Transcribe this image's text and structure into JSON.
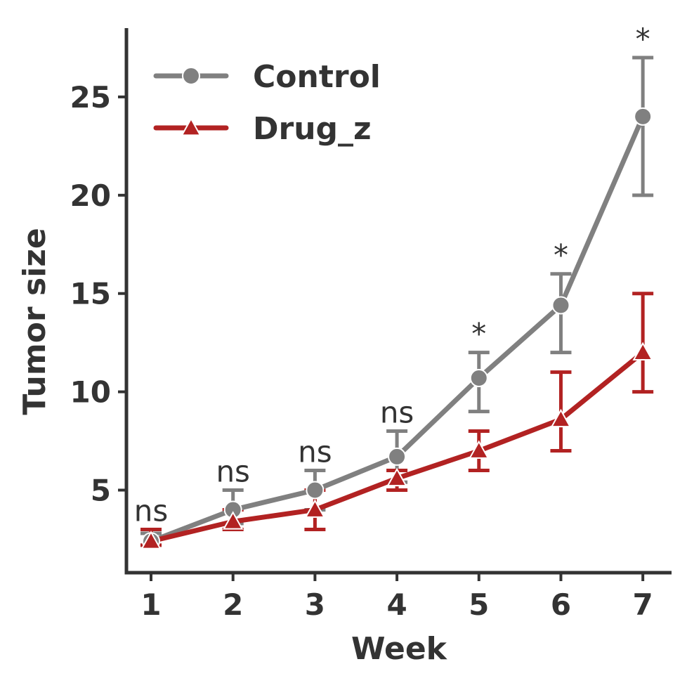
{
  "chart_data": {
    "type": "line",
    "title": "",
    "xlabel": "Week",
    "ylabel": "Tumor size",
    "x": [
      1,
      2,
      3,
      4,
      5,
      6,
      7
    ],
    "xlim": [
      0.7,
      7.35
    ],
    "ylim": [
      0.8,
      28.5
    ],
    "yticks": [
      5,
      10,
      15,
      20,
      25
    ],
    "grid": false,
    "legend_position": "top-left",
    "series": [
      {
        "name": "Control",
        "color": "#808080",
        "marker": "circle",
        "values": [
          2.4,
          4.0,
          5.0,
          6.7,
          10.7,
          14.4,
          24.0
        ],
        "err_low": [
          2.2,
          3.3,
          4.0,
          5.4,
          9.0,
          12.0,
          20.0
        ],
        "err_high": [
          2.8,
          5.0,
          6.0,
          8.0,
          12.0,
          16.0,
          27.0
        ]
      },
      {
        "name": "Drug_z",
        "color": "#b22222",
        "marker": "triangle",
        "values": [
          2.4,
          3.4,
          4.0,
          5.6,
          7.0,
          8.6,
          12.0
        ],
        "err_low": [
          2.2,
          3.0,
          3.0,
          5.0,
          6.0,
          7.0,
          10.0
        ],
        "err_high": [
          3.0,
          4.0,
          5.0,
          6.0,
          8.0,
          11.0,
          15.0
        ]
      }
    ],
    "significance": [
      {
        "x": 1,
        "label": "ns",
        "y": 3.0
      },
      {
        "x": 2,
        "label": "ns",
        "y": 5.0
      },
      {
        "x": 3,
        "label": "ns",
        "y": 6.0
      },
      {
        "x": 4,
        "label": "ns",
        "y": 8.0
      },
      {
        "x": 5,
        "label": "*",
        "y": 12.0
      },
      {
        "x": 6,
        "label": "*",
        "y": 16.0
      },
      {
        "x": 7,
        "label": "*",
        "y": 27.0
      }
    ]
  }
}
